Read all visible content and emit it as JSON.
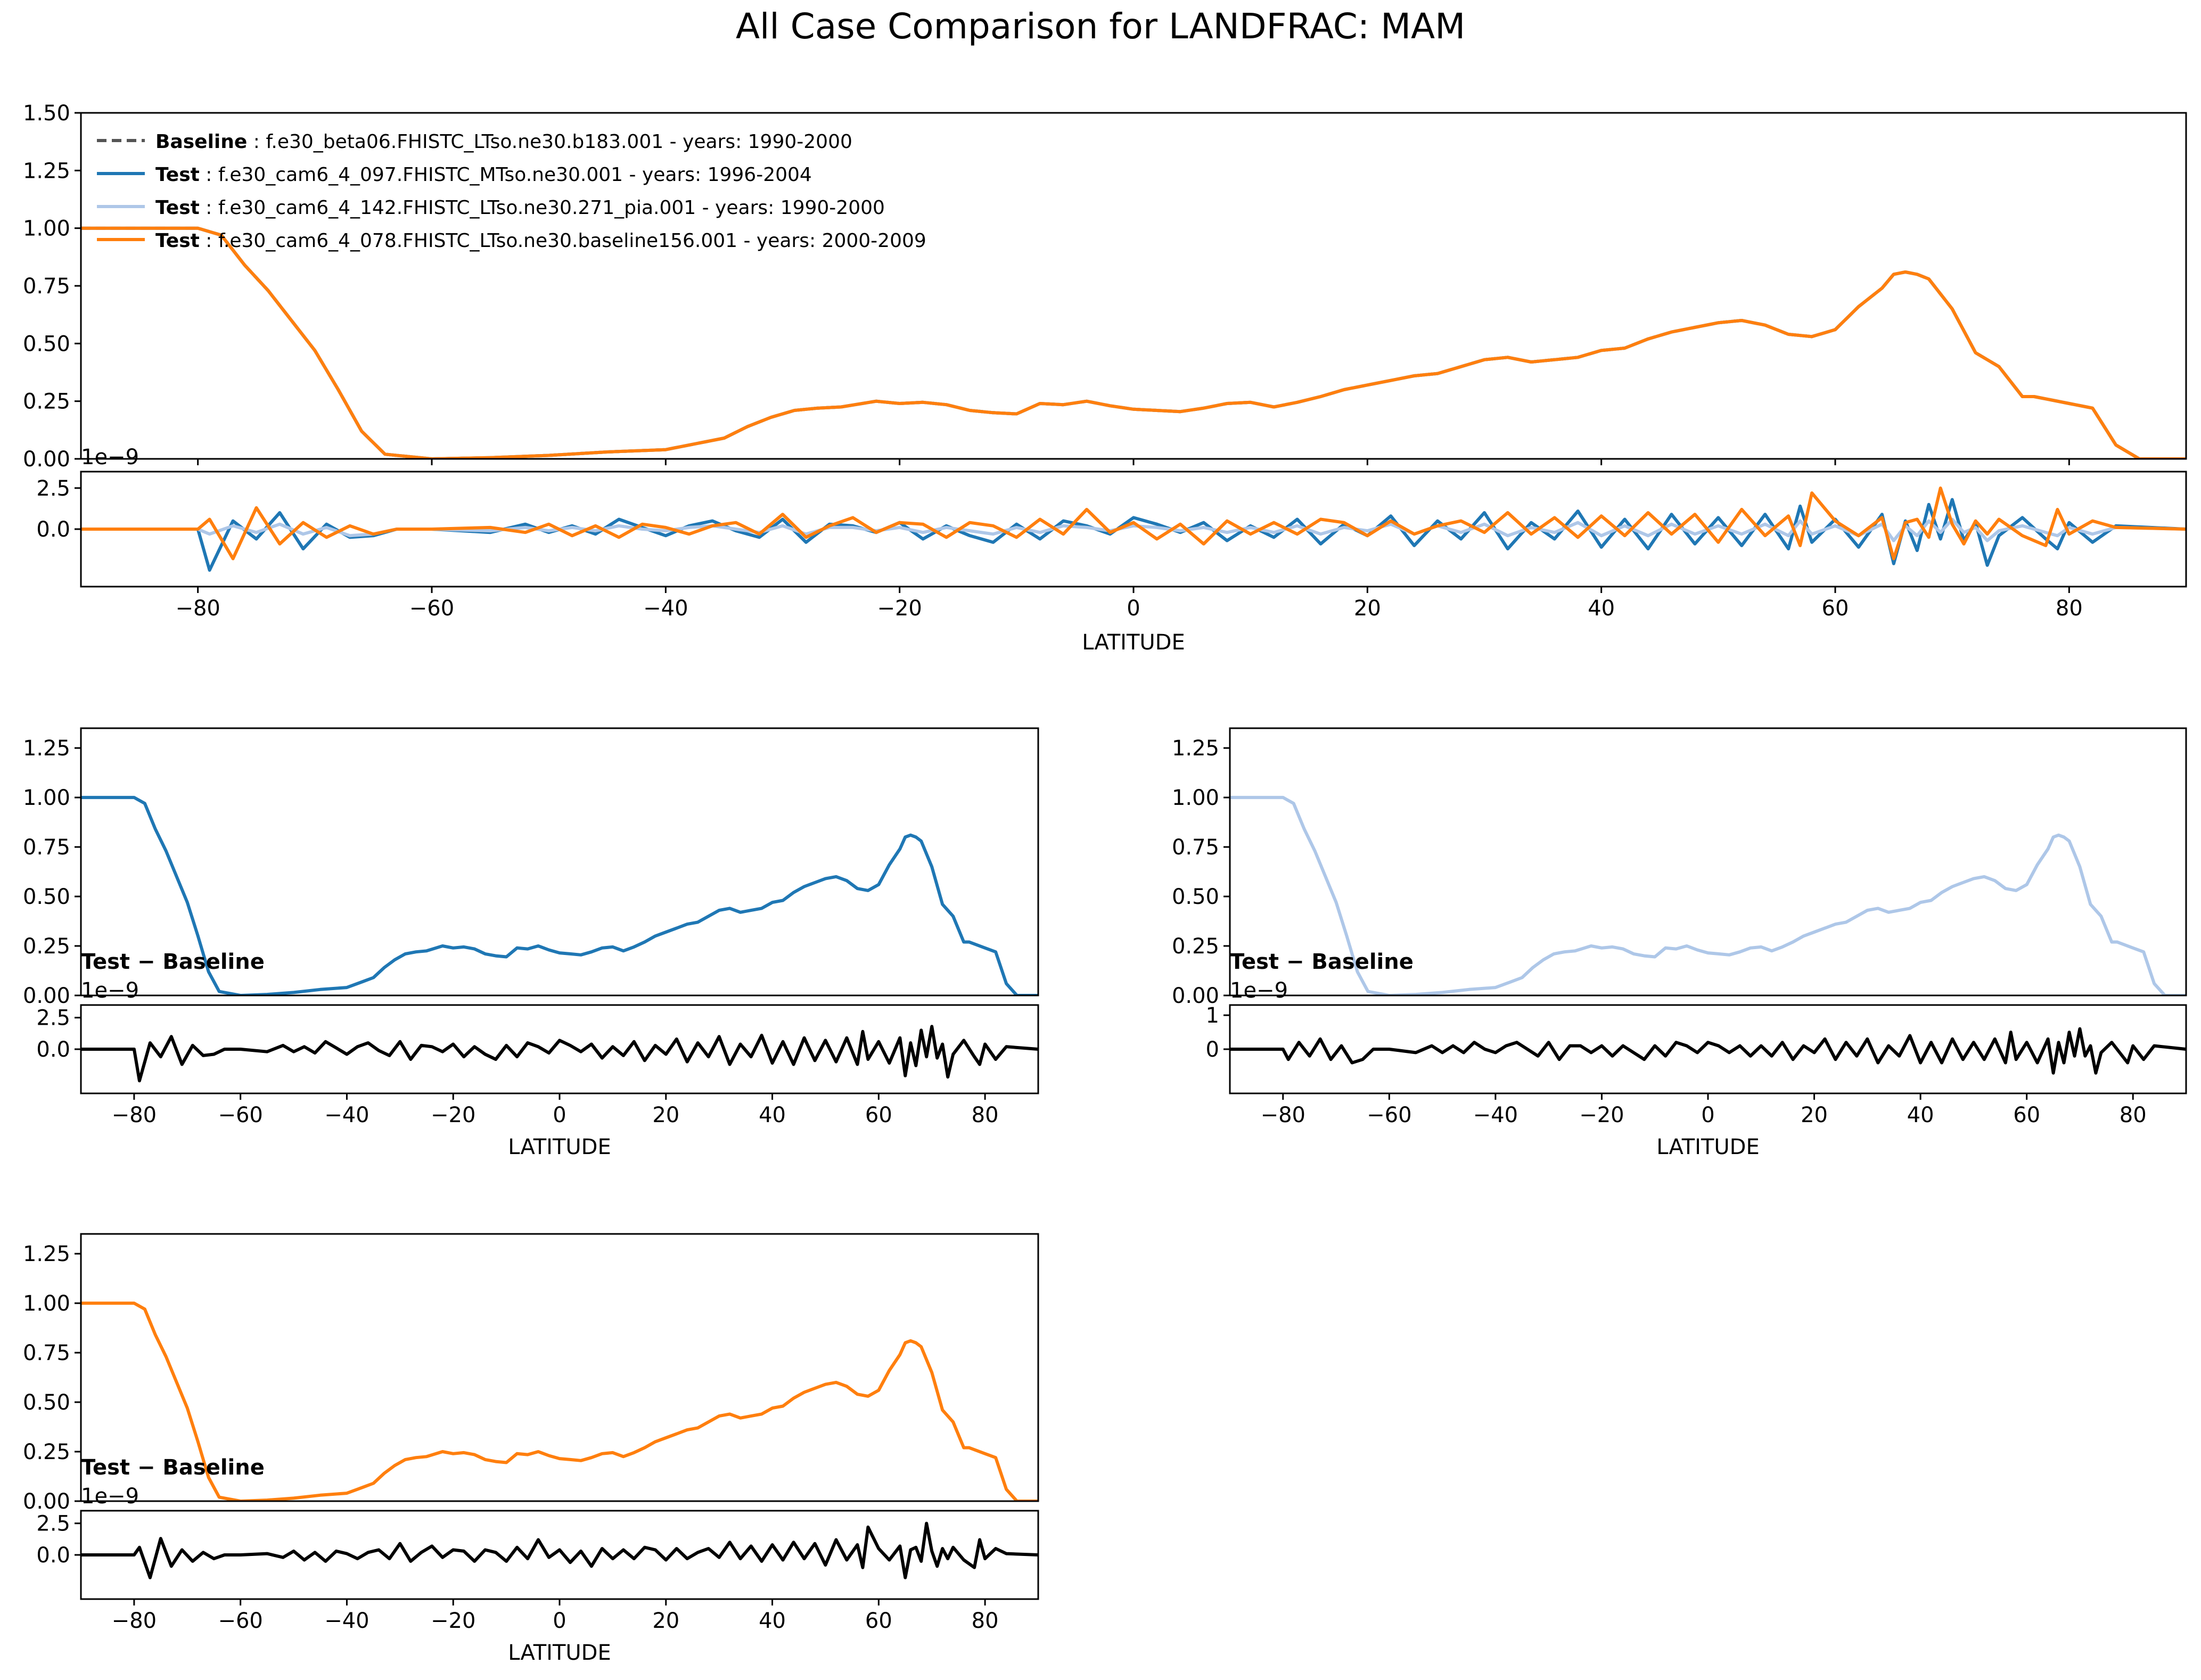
{
  "figure_title": "All Case Comparison for LANDFRAC: MAM",
  "colors": {
    "baseline": "#555555",
    "test1": "#1f77b4",
    "test2": "#aec7e8",
    "test3": "#ff7f0e",
    "difference": "#000000"
  },
  "legend": {
    "entries": [
      {
        "role": "Baseline",
        "sep": ":",
        "text": "f.e30_beta06.FHISTC_LTso.ne30.b183.001 - years: 1990-2000",
        "color": "#555555",
        "dash": true
      },
      {
        "role": "Test",
        "sep": ":",
        "text": "f.e30_cam6_4_097.FHISTC_MTso.ne30.001 - years: 1996-2004",
        "color": "#1f77b4",
        "dash": false
      },
      {
        "role": "Test",
        "sep": ":",
        "text": "f.e30_cam6_4_142.FHISTC_LTso.ne30.271_pia.001 - years: 1990-2000",
        "color": "#aec7e8",
        "dash": false
      },
      {
        "role": "Test",
        "sep": ":",
        "text": "f.e30_cam6_4_078.FHISTC_LTso.ne30.baseline156.001 - years: 2000-2009",
        "color": "#ff7f0e",
        "dash": false
      }
    ]
  },
  "labels": {
    "diff_label": "Test − Baseline",
    "offset": "1e−9",
    "xlabel": "LATITUDE"
  },
  "chart_data": [
    {
      "type": "line",
      "panel": "all-cases-mean",
      "xlim": [
        -90,
        90
      ],
      "ylim": [
        0,
        1.5
      ],
      "yticks": [
        0,
        0.25,
        0.5,
        0.75,
        1.0,
        1.25,
        1.5
      ],
      "xticks": [
        -80,
        -60,
        -40,
        -20,
        0,
        20,
        40,
        60,
        80
      ],
      "x": [
        -90,
        -80,
        -78,
        -76,
        -74,
        -72,
        -70,
        -68,
        -66,
        -64,
        -60,
        -55,
        -50,
        -45,
        -40,
        -37,
        -35,
        -33,
        -31,
        -29,
        -27,
        -25,
        -22,
        -20,
        -18,
        -16,
        -14,
        -12,
        -10,
        -8,
        -6,
        -4,
        -2,
        0,
        2,
        4,
        6,
        8,
        10,
        12,
        14,
        16,
        18,
        20,
        22,
        24,
        26,
        28,
        30,
        32,
        34,
        36,
        38,
        40,
        42,
        44,
        46,
        48,
        50,
        52,
        54,
        56,
        58,
        60,
        62,
        64,
        65,
        66,
        67,
        68,
        70,
        72,
        74,
        76,
        77,
        78,
        80,
        82,
        84,
        86,
        90
      ],
      "series": [
        {
          "name": "Baseline",
          "values": [
            1.0,
            1.0,
            0.97,
            0.84,
            0.73,
            0.6,
            0.47,
            0.3,
            0.12,
            0.02,
            0.0,
            0.005,
            0.015,
            0.03,
            0.04,
            0.07,
            0.09,
            0.14,
            0.18,
            0.21,
            0.22,
            0.225,
            0.25,
            0.24,
            0.245,
            0.235,
            0.21,
            0.2,
            0.195,
            0.24,
            0.235,
            0.25,
            0.23,
            0.215,
            0.21,
            0.205,
            0.22,
            0.24,
            0.245,
            0.225,
            0.245,
            0.27,
            0.3,
            0.32,
            0.34,
            0.36,
            0.37,
            0.4,
            0.43,
            0.44,
            0.42,
            0.43,
            0.44,
            0.47,
            0.48,
            0.52,
            0.55,
            0.57,
            0.59,
            0.6,
            0.58,
            0.54,
            0.53,
            0.56,
            0.66,
            0.74,
            0.8,
            0.81,
            0.8,
            0.78,
            0.65,
            0.46,
            0.4,
            0.27,
            0.27,
            0.26,
            0.24,
            0.22,
            0.06,
            0.0,
            0.0
          ]
        },
        {
          "name": "Test",
          "values": [
            1.0,
            1.0,
            0.97,
            0.84,
            0.73,
            0.6,
            0.47,
            0.3,
            0.12,
            0.02,
            0.0,
            0.005,
            0.015,
            0.03,
            0.04,
            0.07,
            0.09,
            0.14,
            0.18,
            0.21,
            0.22,
            0.225,
            0.25,
            0.24,
            0.245,
            0.235,
            0.21,
            0.2,
            0.195,
            0.24,
            0.235,
            0.25,
            0.23,
            0.215,
            0.21,
            0.205,
            0.22,
            0.24,
            0.245,
            0.225,
            0.245,
            0.27,
            0.3,
            0.32,
            0.34,
            0.36,
            0.37,
            0.4,
            0.43,
            0.44,
            0.42,
            0.43,
            0.44,
            0.47,
            0.48,
            0.52,
            0.55,
            0.57,
            0.59,
            0.6,
            0.58,
            0.54,
            0.53,
            0.56,
            0.66,
            0.74,
            0.8,
            0.81,
            0.8,
            0.78,
            0.65,
            0.46,
            0.4,
            0.27,
            0.27,
            0.26,
            0.24,
            0.22,
            0.06,
            0.0,
            0.0
          ]
        },
        {
          "name": "Test",
          "values": [
            1.0,
            1.0,
            0.97,
            0.84,
            0.73,
            0.6,
            0.47,
            0.3,
            0.12,
            0.02,
            0.0,
            0.005,
            0.015,
            0.03,
            0.04,
            0.07,
            0.09,
            0.14,
            0.18,
            0.21,
            0.22,
            0.225,
            0.25,
            0.24,
            0.245,
            0.235,
            0.21,
            0.2,
            0.195,
            0.24,
            0.235,
            0.25,
            0.23,
            0.215,
            0.21,
            0.205,
            0.22,
            0.24,
            0.245,
            0.225,
            0.245,
            0.27,
            0.3,
            0.32,
            0.34,
            0.36,
            0.37,
            0.4,
            0.43,
            0.44,
            0.42,
            0.43,
            0.44,
            0.47,
            0.48,
            0.52,
            0.55,
            0.57,
            0.59,
            0.6,
            0.58,
            0.54,
            0.53,
            0.56,
            0.66,
            0.74,
            0.8,
            0.81,
            0.8,
            0.78,
            0.65,
            0.46,
            0.4,
            0.27,
            0.27,
            0.26,
            0.24,
            0.22,
            0.06,
            0.0,
            0.0
          ]
        },
        {
          "name": "Test",
          "values": [
            1.0,
            1.0,
            0.97,
            0.84,
            0.73,
            0.6,
            0.47,
            0.3,
            0.12,
            0.02,
            0.0,
            0.005,
            0.015,
            0.03,
            0.04,
            0.07,
            0.09,
            0.14,
            0.18,
            0.21,
            0.22,
            0.225,
            0.25,
            0.24,
            0.245,
            0.235,
            0.21,
            0.2,
            0.195,
            0.24,
            0.235,
            0.25,
            0.23,
            0.215,
            0.21,
            0.205,
            0.22,
            0.24,
            0.245,
            0.225,
            0.245,
            0.27,
            0.3,
            0.32,
            0.34,
            0.36,
            0.37,
            0.4,
            0.43,
            0.44,
            0.42,
            0.43,
            0.44,
            0.47,
            0.48,
            0.52,
            0.55,
            0.57,
            0.59,
            0.6,
            0.58,
            0.54,
            0.53,
            0.56,
            0.66,
            0.74,
            0.8,
            0.81,
            0.8,
            0.78,
            0.65,
            0.46,
            0.4,
            0.27,
            0.27,
            0.26,
            0.24,
            0.22,
            0.06,
            0.0,
            0.0
          ]
        }
      ]
    },
    {
      "type": "line",
      "panel": "all-cases-difference",
      "xlim": [
        -90,
        90
      ],
      "ylim": [
        -3.5,
        3.5
      ],
      "yticks": [
        0,
        2.5
      ],
      "xticks": [
        -80,
        -60,
        -40,
        -20,
        0,
        20,
        40,
        60,
        80
      ],
      "xlabel": "LATITUDE",
      "x": [
        -90,
        -80,
        -79,
        -77,
        -75,
        -73,
        -71,
        -69,
        -67,
        -65,
        -63,
        -60,
        -55,
        -52,
        -50,
        -48,
        -46,
        -44,
        -42,
        -40,
        -38,
        -36,
        -34,
        -32,
        -30,
        -28,
        -26,
        -24,
        -22,
        -20,
        -18,
        -16,
        -14,
        -12,
        -10,
        -8,
        -6,
        -4,
        -2,
        0,
        2,
        4,
        6,
        8,
        10,
        12,
        14,
        16,
        18,
        20,
        22,
        24,
        26,
        28,
        30,
        32,
        34,
        36,
        38,
        40,
        42,
        44,
        46,
        48,
        50,
        52,
        54,
        56,
        57,
        58,
        60,
        62,
        64,
        65,
        66,
        67,
        68,
        69,
        70,
        71,
        72,
        73,
        74,
        76,
        78,
        79,
        80,
        82,
        84,
        90
      ],
      "series": [
        {
          "name": "Test",
          "values": [
            0,
            0,
            -2.5,
            0.5,
            -0.6,
            1.0,
            -1.2,
            0.3,
            -0.5,
            -0.4,
            0.0,
            0.0,
            -0.2,
            0.3,
            -0.2,
            0.2,
            -0.3,
            0.6,
            0.1,
            -0.4,
            0.2,
            0.5,
            -0.1,
            -0.5,
            0.6,
            -0.8,
            0.3,
            0.2,
            -0.2,
            0.4,
            -0.6,
            0.2,
            -0.4,
            -0.8,
            0.3,
            -0.6,
            0.5,
            0.2,
            -0.3,
            0.7,
            0.3,
            -0.2,
            0.4,
            -0.7,
            0.2,
            -0.5,
            0.6,
            -0.9,
            0.3,
            -0.4,
            0.8,
            -1.0,
            0.5,
            -0.6,
            1.0,
            -1.2,
            0.4,
            -0.6,
            1.1,
            -1.1,
            0.6,
            -1.2,
            0.9,
            -0.9,
            0.7,
            -1.0,
            0.9,
            -1.2,
            1.4,
            -0.8,
            0.6,
            -1.1,
            0.9,
            -2.1,
            0.5,
            -1.3,
            1.5,
            -0.6,
            1.8,
            -0.7,
            0.4,
            -2.2,
            -0.4,
            0.7,
            -0.6,
            -1.2,
            0.4,
            -0.8,
            0.2,
            0
          ]
        },
        {
          "name": "Test",
          "values": [
            0,
            0,
            -0.3,
            0.2,
            -0.2,
            0.3,
            -0.3,
            0.1,
            -0.4,
            -0.3,
            0.0,
            0.0,
            -0.1,
            0.1,
            -0.1,
            0.1,
            -0.1,
            0.2,
            0.0,
            -0.1,
            0.1,
            0.2,
            0.0,
            -0.2,
            0.2,
            -0.3,
            0.1,
            0.1,
            -0.1,
            0.1,
            -0.2,
            0.1,
            -0.1,
            -0.3,
            0.1,
            -0.2,
            0.2,
            0.1,
            -0.1,
            0.2,
            0.1,
            -0.1,
            0.1,
            -0.2,
            0.1,
            -0.2,
            0.2,
            -0.3,
            0.1,
            -0.1,
            0.3,
            -0.3,
            0.2,
            -0.2,
            0.3,
            -0.4,
            0.1,
            -0.2,
            0.4,
            -0.4,
            0.2,
            -0.4,
            0.3,
            -0.3,
            0.2,
            -0.3,
            0.3,
            -0.4,
            0.5,
            -0.3,
            0.2,
            -0.4,
            0.3,
            -0.7,
            0.2,
            -0.4,
            0.5,
            -0.2,
            0.6,
            -0.2,
            0.1,
            -0.7,
            -0.1,
            0.2,
            -0.2,
            -0.4,
            0.1,
            -0.3,
            0.1,
            0
          ]
        },
        {
          "name": "Test",
          "values": [
            0,
            0,
            0.6,
            -1.8,
            1.3,
            -0.9,
            0.4,
            -0.5,
            0.2,
            -0.3,
            0.0,
            0.0,
            0.1,
            -0.2,
            0.3,
            -0.4,
            0.2,
            -0.5,
            0.3,
            0.1,
            -0.3,
            0.2,
            0.4,
            -0.3,
            0.9,
            -0.5,
            0.2,
            0.7,
            -0.2,
            0.4,
            0.3,
            -0.5,
            0.4,
            0.2,
            -0.5,
            0.6,
            -0.3,
            1.2,
            -0.2,
            0.4,
            -0.6,
            0.3,
            -0.9,
            0.5,
            -0.3,
            0.4,
            -0.3,
            0.6,
            0.4,
            -0.4,
            0.5,
            -0.3,
            0.2,
            0.5,
            -0.2,
            1.0,
            -0.3,
            0.7,
            -0.5,
            0.8,
            -0.4,
            1.0,
            -0.3,
            0.9,
            -0.8,
            1.2,
            -0.4,
            0.8,
            -1.0,
            2.2,
            0.5,
            -0.4,
            0.7,
            -1.8,
            0.4,
            0.6,
            -0.5,
            2.5,
            0.3,
            -0.9,
            0.5,
            -0.3,
            0.6,
            -0.4,
            -1.0,
            1.2,
            -0.3,
            0.5,
            0.1,
            0
          ]
        }
      ]
    },
    {
      "type": "line",
      "panel": "test1-mean",
      "xlim": [
        -90,
        90
      ],
      "ylim": [
        0,
        1.35
      ],
      "yticks": [
        0,
        0.25,
        0.5,
        0.75,
        1.0,
        1.25
      ],
      "series": [
        {
          "name": "Test",
          "ref": "all-cases-mean:1"
        }
      ]
    },
    {
      "type": "line",
      "panel": "test1-difference",
      "xlim": [
        -90,
        90
      ],
      "ylim": [
        -3.5,
        3.5
      ],
      "yticks": [
        0,
        2.5
      ],
      "xticks": [
        -80,
        -60,
        -40,
        -20,
        0,
        20,
        40,
        60,
        80
      ],
      "xlabel": "LATITUDE",
      "series": [
        {
          "name": "Test − Baseline",
          "ref": "all-cases-difference:0"
        }
      ]
    },
    {
      "type": "line",
      "panel": "test2-mean",
      "xlim": [
        -90,
        90
      ],
      "ylim": [
        0,
        1.35
      ],
      "yticks": [
        0,
        0.25,
        0.5,
        0.75,
        1.0,
        1.25
      ],
      "series": [
        {
          "name": "Test",
          "ref": "all-cases-mean:2"
        }
      ]
    },
    {
      "type": "line",
      "panel": "test2-difference",
      "xlim": [
        -90,
        90
      ],
      "ylim": [
        -1.3,
        1.3
      ],
      "yticks": [
        0,
        1
      ],
      "xticks": [
        -80,
        -60,
        -40,
        -20,
        0,
        20,
        40,
        60,
        80
      ],
      "xlabel": "LATITUDE",
      "series": [
        {
          "name": "Test − Baseline",
          "ref": "all-cases-difference:1"
        }
      ]
    },
    {
      "type": "line",
      "panel": "test3-mean",
      "xlim": [
        -90,
        90
      ],
      "ylim": [
        0,
        1.35
      ],
      "yticks": [
        0,
        0.25,
        0.5,
        0.75,
        1.0,
        1.25
      ],
      "series": [
        {
          "name": "Test",
          "ref": "all-cases-mean:3"
        }
      ]
    },
    {
      "type": "line",
      "panel": "test3-difference",
      "xlim": [
        -90,
        90
      ],
      "ylim": [
        -3.5,
        3.5
      ],
      "yticks": [
        0,
        2.5
      ],
      "xticks": [
        -80,
        -60,
        -40,
        -20,
        0,
        20,
        40,
        60,
        80
      ],
      "xlabel": "LATITUDE",
      "series": [
        {
          "name": "Test − Baseline",
          "ref": "all-cases-difference:2"
        }
      ]
    }
  ]
}
